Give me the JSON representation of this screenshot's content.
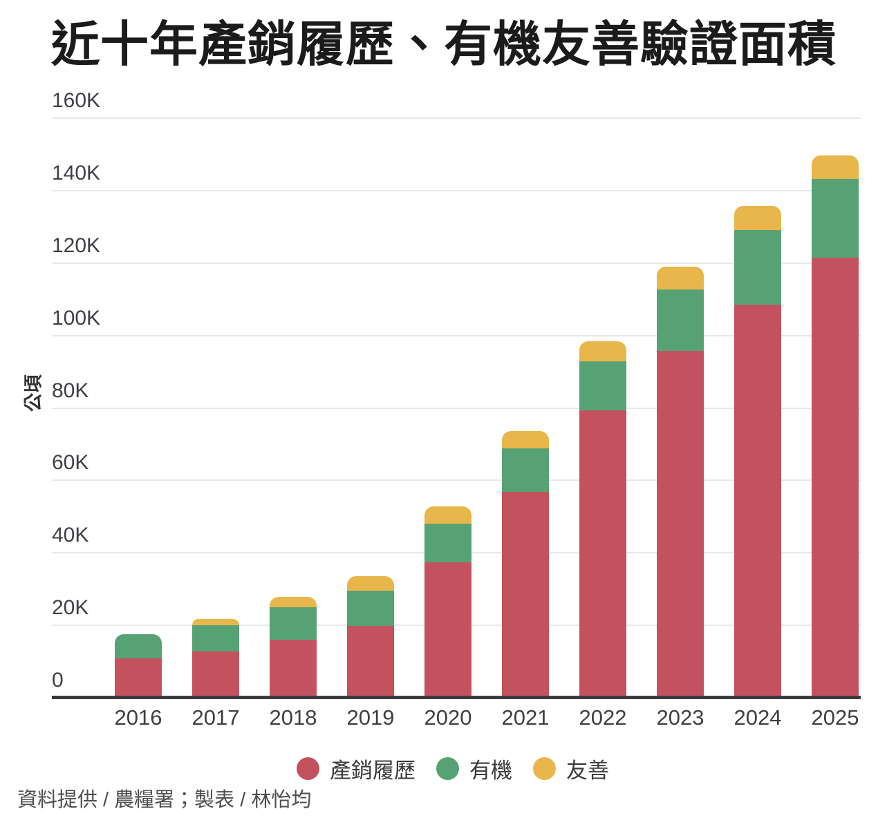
{
  "title": "近十年產銷履歷、有機友善驗證面積",
  "y_axis": {
    "label": "公頃",
    "ticks": [
      {
        "value": 0,
        "label": "0"
      },
      {
        "value": 20000,
        "label": "20K"
      },
      {
        "value": 40000,
        "label": "40K"
      },
      {
        "value": 60000,
        "label": "60K"
      },
      {
        "value": 80000,
        "label": "80K"
      },
      {
        "value": 100000,
        "label": "100K"
      },
      {
        "value": 120000,
        "label": "120K"
      },
      {
        "value": 140000,
        "label": "140K"
      },
      {
        "value": 160000,
        "label": "160K"
      }
    ]
  },
  "chart_data": {
    "type": "bar",
    "stacked": true,
    "title": "近十年產銷履歷、有機友善驗證面積",
    "xlabel": "",
    "ylabel": "公頃",
    "ylim": [
      0,
      160000
    ],
    "grid": true,
    "legend_position": "bottom",
    "categories": [
      2016,
      2017,
      2018,
      2019,
      2020,
      2021,
      2022,
      2023,
      2024,
      2025
    ],
    "series": [
      {
        "name": "產銷履歷",
        "key": "traceability",
        "color": "#c4525e",
        "values": [
          10900,
          12800,
          16000,
          19800,
          37300,
          56900,
          79400,
          95800,
          108500,
          121500
        ]
      },
      {
        "name": "有機",
        "key": "organic",
        "color": "#56a274",
        "values": [
          6700,
          7300,
          9000,
          9700,
          10700,
          12000,
          13500,
          17000,
          20600,
          21700
        ]
      },
      {
        "name": "友善",
        "key": "friendly",
        "color": "#e9b64b",
        "values": [
          0,
          1700,
          2800,
          4000,
          4900,
          4800,
          5500,
          6300,
          6700,
          6500
        ]
      }
    ]
  },
  "footer": {
    "credit": "資料提供 / 農糧署；製表 / 林怡均"
  }
}
